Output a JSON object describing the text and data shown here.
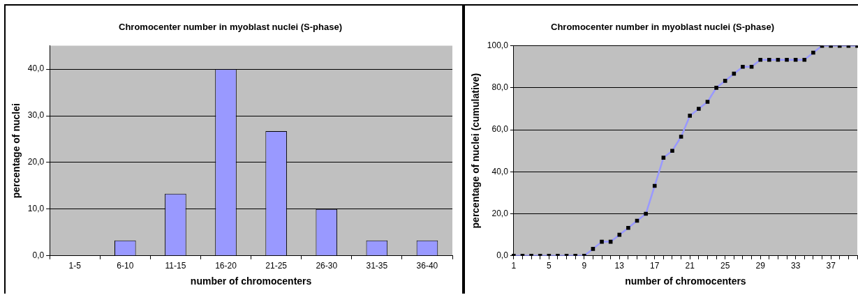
{
  "chart_data": [
    {
      "type": "bar",
      "title": "Chromocenter number in myoblast nuclei (S-phase)",
      "xlabel": "number of chromocenters",
      "ylabel": "percentage of nuclei",
      "categories": [
        "1-5",
        "6-10",
        "11-15",
        "16-20",
        "21-25",
        "26-30",
        "31-35",
        "36-40"
      ],
      "values": [
        0,
        3.3,
        13.3,
        40,
        26.7,
        10,
        3.3,
        3.3
      ],
      "color": "#9999ff",
      "ylim": [
        0,
        45
      ],
      "yticks": [
        {
          "value": 0,
          "label": "0,0"
        },
        {
          "value": 10,
          "label": "10,0"
        },
        {
          "value": 20,
          "label": "20,0"
        },
        {
          "value": 30,
          "label": "30,0"
        },
        {
          "value": 40,
          "label": "40,0"
        }
      ],
      "grid": "y",
      "legend": false
    },
    {
      "type": "line",
      "title": "Chromocenter number in myoblast nuclei (S-phase)",
      "xlabel": "number of chromocenters",
      "ylabel": "percentage of nuclei (cumulative)",
      "categories": [
        "1",
        null,
        null,
        null,
        "5",
        null,
        null,
        null,
        "9",
        null,
        null,
        null,
        "13",
        null,
        null,
        null,
        "17",
        null,
        null,
        null,
        "21",
        null,
        null,
        null,
        "25",
        null,
        null,
        null,
        "29",
        null,
        null,
        null,
        "33",
        null,
        null,
        null,
        "37",
        null,
        null,
        null
      ],
      "values": [
        0,
        0,
        0,
        0,
        0,
        0,
        0,
        0,
        0,
        3.3,
        6.7,
        6.7,
        10,
        13.3,
        16.7,
        20,
        33.3,
        46.7,
        50,
        56.7,
        66.7,
        70,
        73.3,
        80,
        83.3,
        86.7,
        90,
        90,
        93.3,
        93.3,
        93.3,
        93.3,
        93.3,
        93.3,
        96.7,
        100,
        100,
        100,
        100,
        100
      ],
      "color": "#9999ff",
      "marker": "square",
      "line_style": "solid",
      "ylim": [
        0,
        100
      ],
      "yticks": [
        {
          "value": 0,
          "label": "0,0"
        },
        {
          "value": 20,
          "label": "20,0"
        },
        {
          "value": 40,
          "label": "40,0"
        },
        {
          "value": 60,
          "label": "60,0"
        },
        {
          "value": 80,
          "label": "80,0"
        },
        {
          "value": 100,
          "label": "100,0"
        }
      ],
      "grid": "y",
      "legend": false
    }
  ]
}
